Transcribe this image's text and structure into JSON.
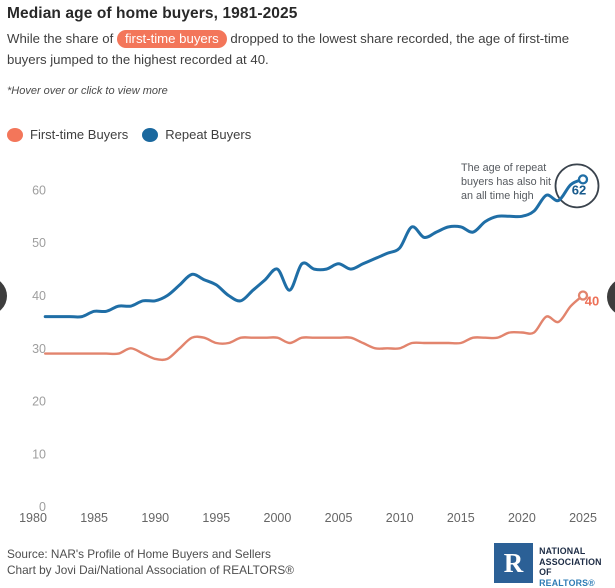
{
  "header": {
    "title": "Median age of home buyers, 1981-2025",
    "subtitle_prefix": "While the share of ",
    "subtitle_highlight": "first-time buyers",
    "subtitle_suffix": " dropped to the lowest share recorded, the age of first-time buyers jumped to the highest recorded at 40.",
    "note": "*Hover over or click to view more"
  },
  "legend": [
    {
      "label": "First-time Buyers",
      "color": "#f3765a"
    },
    {
      "label": "Repeat Buyers",
      "color": "#1a689e"
    }
  ],
  "chart_data": {
    "type": "line",
    "title": "Median age of home buyers, 1981-2025",
    "x": [
      1981,
      1982,
      1983,
      1984,
      1985,
      1986,
      1987,
      1988,
      1989,
      1990,
      1991,
      1992,
      1993,
      1994,
      1995,
      1996,
      1997,
      1998,
      1999,
      2000,
      2001,
      2002,
      2003,
      2004,
      2005,
      2006,
      2007,
      2008,
      2009,
      2010,
      2011,
      2012,
      2013,
      2014,
      2015,
      2016,
      2017,
      2018,
      2019,
      2020,
      2021,
      2022,
      2023,
      2024,
      2025
    ],
    "series": [
      {
        "name": "First-time Buyers",
        "color": "#e2846d",
        "values": [
          29,
          29,
          29,
          29,
          29,
          29,
          29,
          30,
          29,
          28,
          28,
          30,
          32,
          32,
          31,
          31,
          32,
          32,
          32,
          32,
          31,
          32,
          32,
          32,
          32,
          32,
          31,
          30,
          30,
          30,
          31,
          31,
          31,
          31,
          31,
          32,
          32,
          32,
          33,
          33,
          33,
          36,
          35,
          38,
          40
        ]
      },
      {
        "name": "Repeat Buyers",
        "color": "#1f6ea6",
        "values": [
          36,
          36,
          36,
          36,
          37,
          37,
          38,
          38,
          39,
          39,
          40,
          42,
          44,
          43,
          42,
          40,
          39,
          41,
          43,
          45,
          41,
          46,
          45,
          45,
          46,
          45,
          46,
          47,
          48,
          49,
          53,
          51,
          52,
          53,
          53,
          52,
          54,
          55,
          55,
          55,
          56,
          59,
          58,
          61,
          62
        ]
      }
    ],
    "x_ticks": [
      1980,
      1985,
      1990,
      1995,
      2000,
      2005,
      2010,
      2015,
      2020,
      2025
    ],
    "y_ticks": [
      0,
      10,
      20,
      30,
      40,
      50,
      60
    ],
    "xlim": [
      1980,
      2025
    ],
    "ylim": [
      0,
      65
    ],
    "grid": false,
    "legend_position": "top-left",
    "end_labels": {
      "first_time": "40",
      "repeat": "62"
    },
    "end_label_colors": {
      "first_time": "#ed6f56",
      "repeat": "#175a8c"
    },
    "annotation_circle_color": "#3a434d"
  },
  "annotation": {
    "text": "The age of repeat buyers has also hit an all time high"
  },
  "footer": {
    "source_line1": "Source: NAR's Profile of Home Buyers and Sellers",
    "source_line2": "Chart by Jovi Dai/National Association of REALTORS®",
    "logo": {
      "letter": "R",
      "line1": "NATIONAL",
      "line2": "ASSOCIATION OF",
      "line3": "REALTORS®"
    }
  }
}
